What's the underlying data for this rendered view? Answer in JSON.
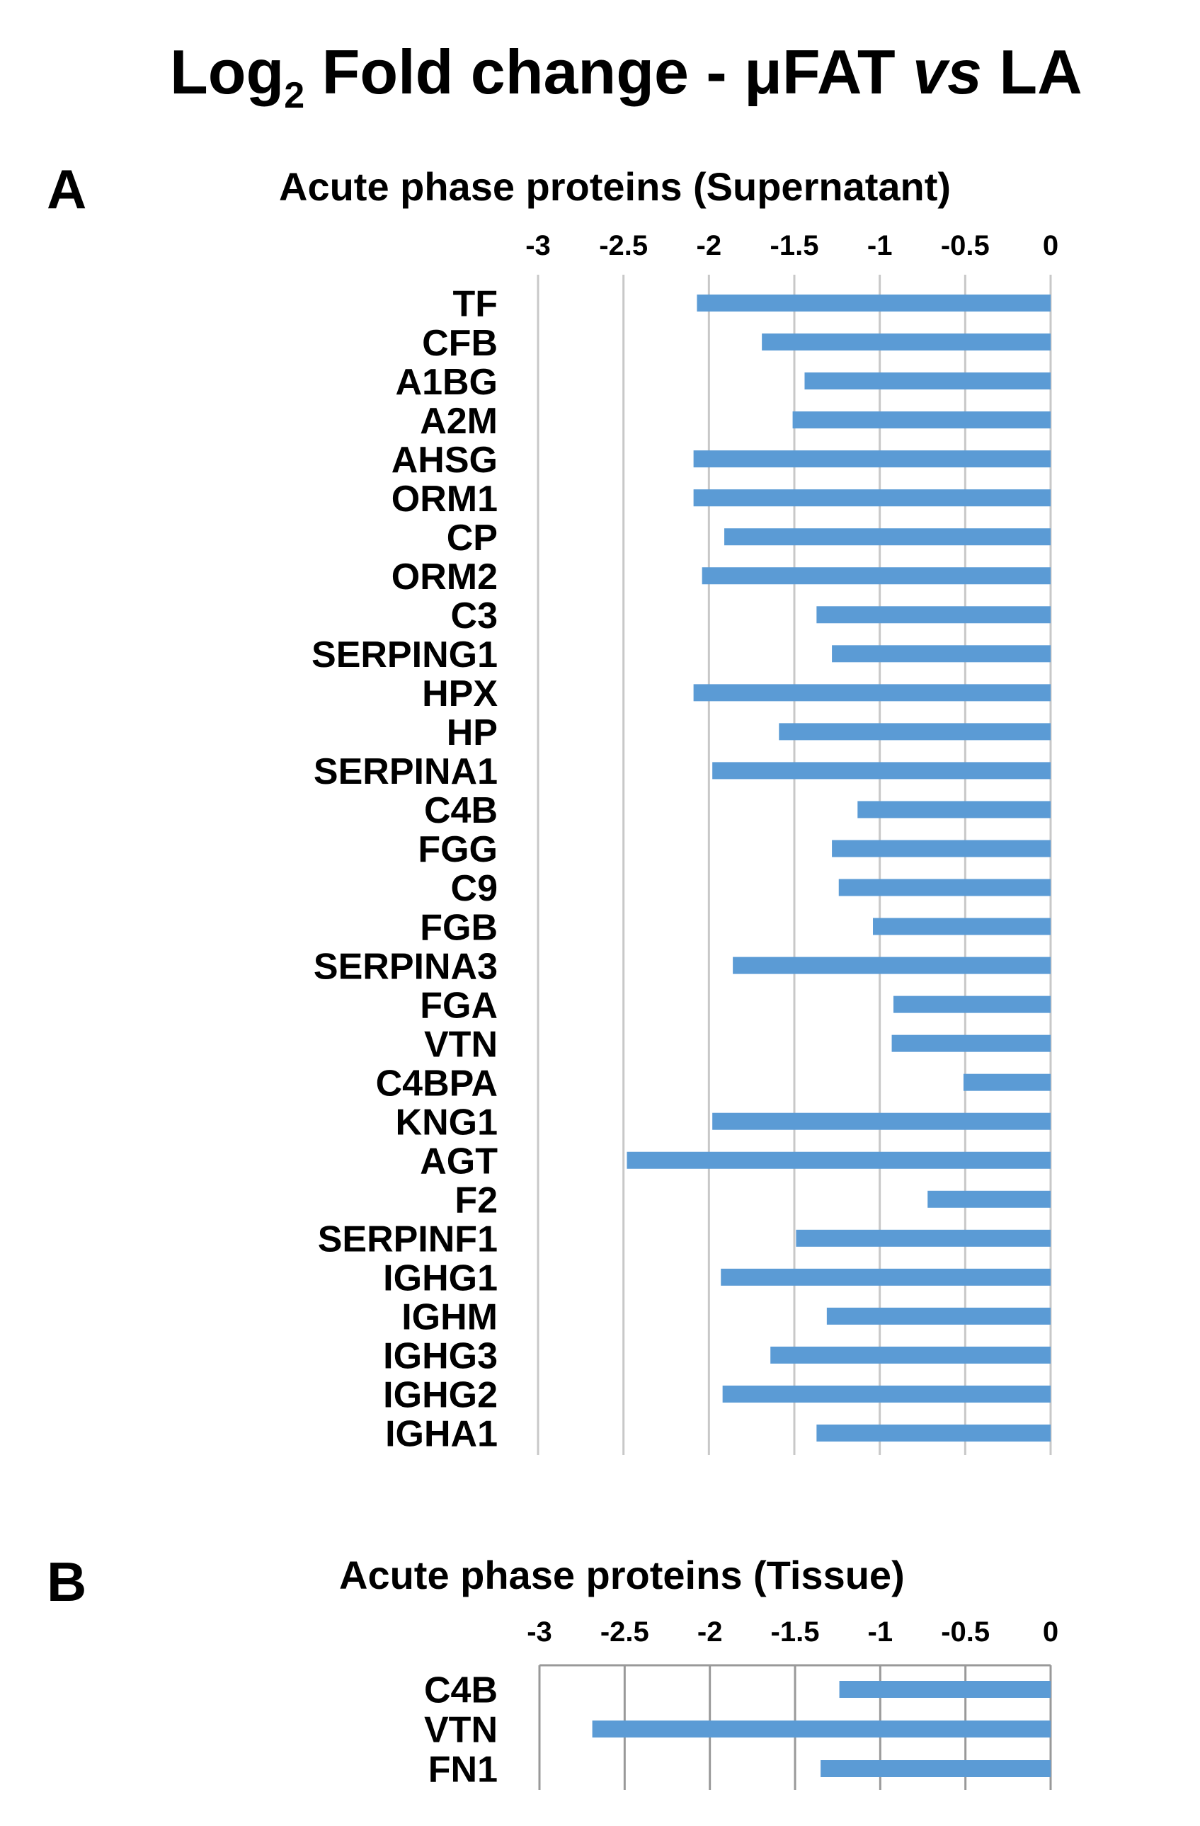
{
  "title": {
    "prefix": "Log",
    "subscript": "2",
    "middle": " Fold change - μFAT ",
    "italic": "vs",
    "suffix": " LA"
  },
  "colors": {
    "bar": "#5b9bd5",
    "grid": "#c8c8c8",
    "axis": "#999999"
  },
  "chart_data": [
    {
      "type": "bar",
      "orientation": "horizontal",
      "panel": "A",
      "title": "Acute phase proteins (Supernatant)",
      "xlim": [
        -3,
        0
      ],
      "xticks": [
        -3,
        -2.5,
        -2,
        -1.5,
        -1,
        -0.5,
        0
      ],
      "grid": true,
      "categories": [
        "TF",
        "CFB",
        "A1BG",
        "A2M",
        "AHSG",
        "ORM1",
        "CP",
        "ORM2",
        "C3",
        "SERPING1",
        "HPX",
        "HP",
        "SERPINA1",
        "C4B",
        "FGG",
        "C9",
        "FGB",
        "SERPINA3",
        "FGA",
        "VTN",
        "C4BPA",
        "KNG1",
        "AGT",
        "F2",
        "SERPINF1",
        "IGHG1",
        "IGHM",
        "IGHG3",
        "IGHG2",
        "IGHA1"
      ],
      "values": [
        -2.07,
        -1.69,
        -1.44,
        -1.51,
        -2.09,
        -2.09,
        -1.91,
        -2.04,
        -1.37,
        -1.28,
        -2.09,
        -1.59,
        -1.98,
        -1.13,
        -1.28,
        -1.24,
        -1.04,
        -1.86,
        -0.92,
        -0.93,
        -0.51,
        -1.98,
        -2.48,
        -0.72,
        -1.49,
        -1.93,
        -1.31,
        -1.64,
        -1.92,
        -1.37
      ]
    },
    {
      "type": "bar",
      "orientation": "horizontal",
      "panel": "B",
      "title": "Acute phase proteins (Tissue)",
      "xlim": [
        -3,
        0
      ],
      "xticks": [
        -3,
        -2.5,
        -2,
        -1.5,
        -1,
        -0.5,
        0
      ],
      "grid": false,
      "categories": [
        "C4B",
        "VTN",
        "FN1"
      ],
      "values": [
        -1.24,
        -2.69,
        -1.35
      ]
    }
  ]
}
